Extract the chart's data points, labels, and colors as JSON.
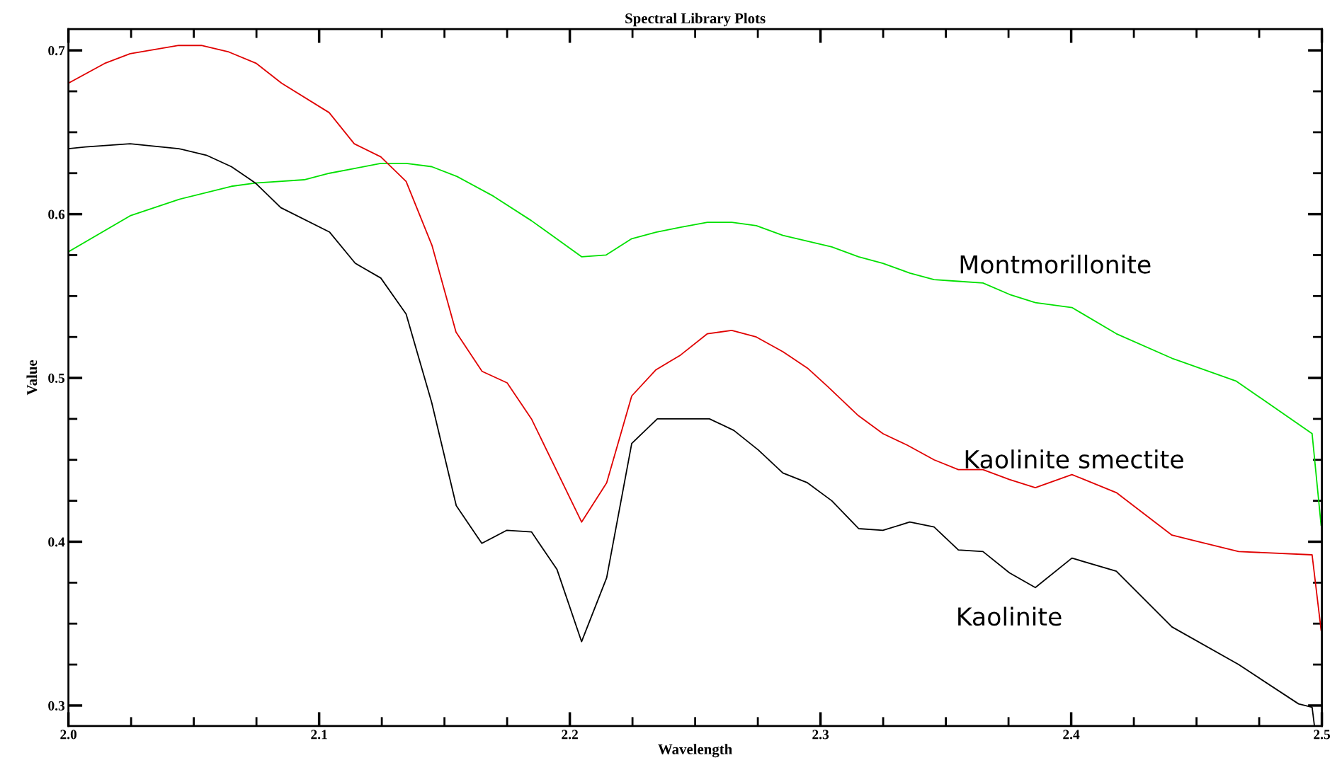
{
  "chart_data": {
    "type": "line",
    "title": "Spectral Library Plots",
    "xlabel": "Wavelength",
    "ylabel": "Value",
    "xlim": [
      2.0,
      2.5
    ],
    "xticks": [
      {
        "value": 2.0,
        "label": "2.0"
      },
      2.1,
      2.2,
      2.3,
      2.4,
      2.5
    ],
    "ylim": [
      0.2875,
      0.713
    ],
    "yticks": [
      0.3,
      0.4,
      0.5,
      0.6,
      0.7
    ],
    "grid": false,
    "legend": false,
    "marker": "none",
    "line_style": "solid",
    "series": [
      {
        "name": "Montmorillonite",
        "color": "#00e000",
        "x": [
          2.0,
          2.0246,
          2.044,
          2.065,
          2.0746,
          2.094,
          2.1042,
          2.1144,
          2.1246,
          2.1347,
          2.1449,
          2.155,
          2.1695,
          2.1847,
          2.2047,
          2.2144,
          2.2247,
          2.2344,
          2.2442,
          2.2549,
          2.2646,
          2.2744,
          2.285,
          2.3045,
          2.3152,
          2.3249,
          2.3356,
          2.3453,
          2.355,
          2.3648,
          2.3754,
          2.3857,
          2.4003,
          2.418,
          2.4402,
          2.4659,
          2.4961,
          2.4997
        ],
        "values": [
          0.577,
          0.599,
          0.609,
          0.617,
          0.619,
          0.621,
          0.625,
          0.628,
          0.631,
          0.631,
          0.629,
          0.623,
          0.611,
          0.596,
          0.574,
          0.575,
          0.585,
          0.589,
          0.592,
          0.595,
          0.595,
          0.593,
          0.587,
          0.58,
          0.574,
          0.57,
          0.564,
          0.56,
          0.559,
          0.558,
          0.551,
          0.546,
          0.543,
          0.527,
          0.512,
          0.498,
          0.466,
          0.41
        ]
      },
      {
        "name": "Kaolinite smectite",
        "color": "#e00000",
        "x": [
          2.0,
          2.0144,
          2.0246,
          2.044,
          2.053,
          2.064,
          2.075,
          2.085,
          2.104,
          2.114,
          2.1246,
          2.1347,
          2.145,
          2.1546,
          2.165,
          2.175,
          2.1847,
          2.2047,
          2.2147,
          2.2247,
          2.2344,
          2.2442,
          2.2549,
          2.2646,
          2.2744,
          2.285,
          2.2948,
          2.3027,
          2.3151,
          2.3249,
          2.3346,
          2.3453,
          2.355,
          2.3648,
          2.3754,
          2.3857,
          2.4003,
          2.418,
          2.4402,
          2.4668,
          2.4961,
          2.4997
        ],
        "values": [
          0.68,
          0.692,
          0.698,
          0.703,
          0.703,
          0.699,
          0.692,
          0.68,
          0.662,
          0.643,
          0.635,
          0.62,
          0.581,
          0.528,
          0.504,
          0.497,
          0.475,
          0.412,
          0.436,
          0.489,
          0.505,
          0.514,
          0.527,
          0.529,
          0.525,
          0.516,
          0.506,
          0.495,
          0.477,
          0.466,
          0.459,
          0.45,
          0.444,
          0.444,
          0.438,
          0.433,
          0.441,
          0.43,
          0.404,
          0.394,
          0.392,
          0.346
        ]
      },
      {
        "name": "Kaolinite",
        "color": "#000000",
        "x": [
          2.0,
          2.0068,
          2.0246,
          2.044,
          2.055,
          2.065,
          2.0746,
          2.0847,
          2.1042,
          2.1144,
          2.1246,
          2.1347,
          2.1449,
          2.1547,
          2.1649,
          2.1749,
          2.1847,
          2.1949,
          2.2047,
          2.2147,
          2.2247,
          2.2349,
          2.2459,
          2.2557,
          2.2654,
          2.2752,
          2.285,
          2.2948,
          2.3045,
          2.3152,
          2.3249,
          2.3356,
          2.3453,
          2.355,
          2.3648,
          2.3754,
          2.3857,
          2.4003,
          2.418,
          2.4402,
          2.4668,
          2.4907,
          2.4961,
          2.497
        ],
        "values": [
          0.64,
          0.641,
          0.643,
          0.64,
          0.636,
          0.629,
          0.619,
          0.604,
          0.589,
          0.57,
          0.561,
          0.539,
          0.485,
          0.422,
          0.399,
          0.407,
          0.406,
          0.383,
          0.339,
          0.378,
          0.46,
          0.475,
          0.475,
          0.475,
          0.468,
          0.456,
          0.442,
          0.436,
          0.425,
          0.408,
          0.407,
          0.412,
          0.409,
          0.395,
          0.394,
          0.381,
          0.372,
          0.39,
          0.382,
          0.348,
          0.325,
          0.301,
          0.299,
          0.288
        ]
      }
    ]
  }
}
